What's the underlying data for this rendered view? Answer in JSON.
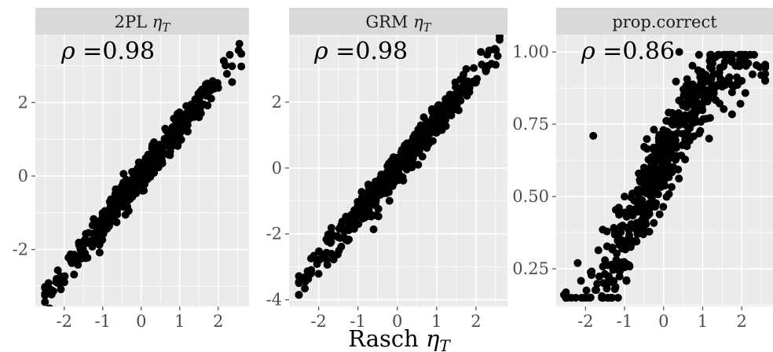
{
  "chart_data": [
    {
      "type": "scatter",
      "strip": {
        "title": "2PL ",
        "symbol": "η",
        "subscript": "T"
      },
      "annotation": {
        "symbol": "ρ",
        "text": " =0.98"
      },
      "correlation": 0.98,
      "xlim": [
        -2.75,
        2.8
      ],
      "ylim": [
        -3.55,
        3.85
      ],
      "xticks": [
        {
          "v": -2,
          "label": "-2"
        },
        {
          "v": -1,
          "label": "-1"
        },
        {
          "v": 0,
          "label": "0"
        },
        {
          "v": 1,
          "label": "1"
        },
        {
          "v": 2,
          "label": "2"
        }
      ],
      "yticks": [
        {
          "v": -2,
          "label": "-2"
        },
        {
          "v": 0,
          "label": "0"
        },
        {
          "v": 2,
          "label": "2"
        }
      ],
      "grid": true,
      "sample": [
        [
          -2.5,
          -3.25
        ],
        [
          -2.2,
          -2.8
        ],
        [
          -1.5,
          -1.8
        ],
        [
          -1.0,
          -1.1
        ],
        [
          -0.5,
          -0.55
        ],
        [
          0.0,
          0.0
        ],
        [
          0.5,
          0.5
        ],
        [
          1.0,
          1.05
        ],
        [
          1.5,
          1.6
        ],
        [
          2.0,
          2.4
        ],
        [
          2.3,
          3.3
        ],
        [
          2.55,
          3.6
        ]
      ],
      "trend": {
        "slope": 1.3,
        "intercept": 0.0,
        "noise": 0.2
      }
    },
    {
      "type": "scatter",
      "strip": {
        "title": "GRM ",
        "symbol": "η",
        "subscript": "T"
      },
      "annotation": {
        "symbol": "ρ",
        "text": " =0.98"
      },
      "correlation": 0.98,
      "xlim": [
        -2.75,
        2.8
      ],
      "ylim": [
        -4.2,
        4.05
      ],
      "xticks": [
        {
          "v": -2,
          "label": "-2"
        },
        {
          "v": -1,
          "label": "-1"
        },
        {
          "v": 0,
          "label": "0"
        },
        {
          "v": 1,
          "label": "1"
        },
        {
          "v": 2,
          "label": "2"
        }
      ],
      "yticks": [
        {
          "v": -4,
          "label": "-4"
        },
        {
          "v": -2,
          "label": "-2"
        },
        {
          "v": 0,
          "label": "0"
        },
        {
          "v": 2,
          "label": "2"
        }
      ],
      "grid": true,
      "sample": [
        [
          -2.5,
          -3.85
        ],
        [
          -2.2,
          -3.2
        ],
        [
          -1.5,
          -2.1
        ],
        [
          -1.0,
          -1.3
        ],
        [
          -0.5,
          -0.6
        ],
        [
          0.0,
          0.05
        ],
        [
          0.5,
          0.6
        ],
        [
          1.0,
          1.3
        ],
        [
          1.5,
          2.0
        ],
        [
          2.0,
          2.6
        ],
        [
          2.3,
          3.1
        ],
        [
          2.55,
          3.4
        ]
      ],
      "trend": {
        "slope": 1.42,
        "intercept": 0.0,
        "noise": 0.25
      }
    },
    {
      "type": "scatter",
      "strip": {
        "title": "prop.correct",
        "symbol": "",
        "subscript": ""
      },
      "annotation": {
        "symbol": "ρ",
        "text": " =0.86"
      },
      "correlation": 0.86,
      "xlim": [
        -2.75,
        2.8
      ],
      "ylim": [
        0.12,
        1.06
      ],
      "xticks": [
        {
          "v": -2,
          "label": "-2"
        },
        {
          "v": -1,
          "label": "-1"
        },
        {
          "v": 0,
          "label": "0"
        },
        {
          "v": 1,
          "label": "1"
        },
        {
          "v": 2,
          "label": "2"
        }
      ],
      "yticks": [
        {
          "v": 0.25,
          "label": "0.25"
        },
        {
          "v": 0.5,
          "label": "0.50"
        },
        {
          "v": 0.75,
          "label": "0.75"
        },
        {
          "v": 1.0,
          "label": "1.00"
        }
      ],
      "grid": true,
      "sample": [
        [
          -2.55,
          0.16
        ],
        [
          -2.2,
          0.27
        ],
        [
          -1.8,
          0.71
        ],
        [
          -1.5,
          0.28
        ],
        [
          -1.0,
          0.5
        ],
        [
          -0.5,
          0.6
        ],
        [
          0.0,
          0.68
        ],
        [
          0.4,
          1.0
        ],
        [
          0.5,
          0.76
        ],
        [
          1.0,
          0.85
        ],
        [
          1.5,
          0.88
        ],
        [
          2.0,
          0.9
        ],
        [
          2.5,
          0.92
        ]
      ],
      "trend": {
        "curve": "logistic",
        "scale": 0.55,
        "noise": 0.07
      }
    }
  ],
  "shared_xlabel": {
    "text": "Rasch ",
    "symbol": "η",
    "subscript": "T"
  },
  "colors": {
    "panel_bg": "#ebebeb",
    "strip_bg": "#d9d9d9",
    "grid": "#ffffff",
    "point": "#000000",
    "tick": "#4d4d4d"
  }
}
